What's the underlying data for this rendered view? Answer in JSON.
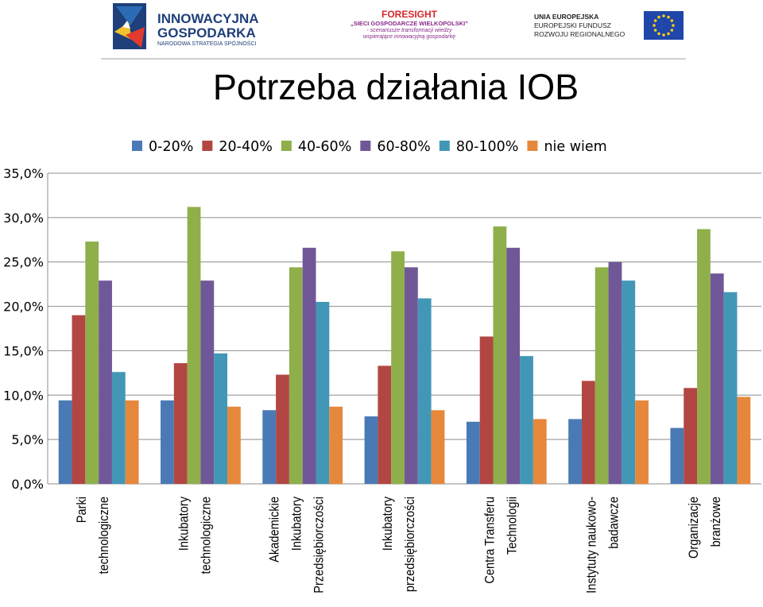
{
  "header": {
    "logo_innowacyjna": {
      "line1": "INNOWACYJNA",
      "line2": "GOSPODARKA",
      "line3": "NARODOWA STRATEGIA SPÓJNOŚCI"
    },
    "logo_foresight": {
      "title": "FORESIGHT",
      "line1": "„SIECI GOSPODARCZE WIELKOPOLSKI”",
      "line2": "- scenariusze transformacji wiedzy",
      "line3": "wspierające innowacyjną gospodarkę"
    },
    "logo_eu": {
      "line1": "UNIA EUROPEJSKA",
      "line2": "EUROPEJSKI FUNDUSZ",
      "line3": "ROZWOJU REGIONALNEGO"
    }
  },
  "chart_data": {
    "type": "bar",
    "title": "Potrzeba działania IOB",
    "ylim": [
      0,
      35
    ],
    "yticks": [
      "0,0%",
      "5,0%",
      "10,0%",
      "15,0%",
      "20,0%",
      "25,0%",
      "30,0%",
      "35,0%"
    ],
    "ytick_values": [
      0,
      5,
      10,
      15,
      20,
      25,
      30,
      35
    ],
    "grid": true,
    "legend_position": "top",
    "categories": [
      [
        "Parki",
        "technologiczne"
      ],
      [
        "Inkubatory",
        "technologiczne"
      ],
      [
        "Akademickie",
        "Inkubatory",
        "Przedsiębiorczości"
      ],
      [
        "Inkubatory",
        "przedsiębiorczości"
      ],
      [
        "Centra Transferu",
        "Technologii"
      ],
      [
        "Instytuty naukowo-",
        "badawcze"
      ],
      [
        "Organizacje",
        "branżowe"
      ]
    ],
    "series": [
      {
        "name": "0-20%",
        "color": "#4a7ab5",
        "values": [
          9.4,
          9.4,
          8.3,
          7.6,
          7.0,
          7.3,
          6.3
        ]
      },
      {
        "name": "20-40%",
        "color": "#b24643",
        "values": [
          19.0,
          13.6,
          12.3,
          13.3,
          16.6,
          11.6,
          10.8
        ]
      },
      {
        "name": "40-60%",
        "color": "#8faf4a",
        "values": [
          27.3,
          31.2,
          24.4,
          26.2,
          29.0,
          24.4,
          28.7
        ]
      },
      {
        "name": "60-80%",
        "color": "#705898",
        "values": [
          22.9,
          22.9,
          26.6,
          24.4,
          26.6,
          25.0,
          23.7
        ]
      },
      {
        "name": "80-100%",
        "color": "#4397b6",
        "values": [
          12.6,
          14.7,
          20.5,
          20.9,
          14.4,
          22.9,
          21.6
        ]
      },
      {
        "name": "nie wiem",
        "color": "#e6883c",
        "values": [
          9.4,
          8.7,
          8.7,
          8.3,
          7.3,
          9.4,
          9.8
        ]
      }
    ]
  }
}
